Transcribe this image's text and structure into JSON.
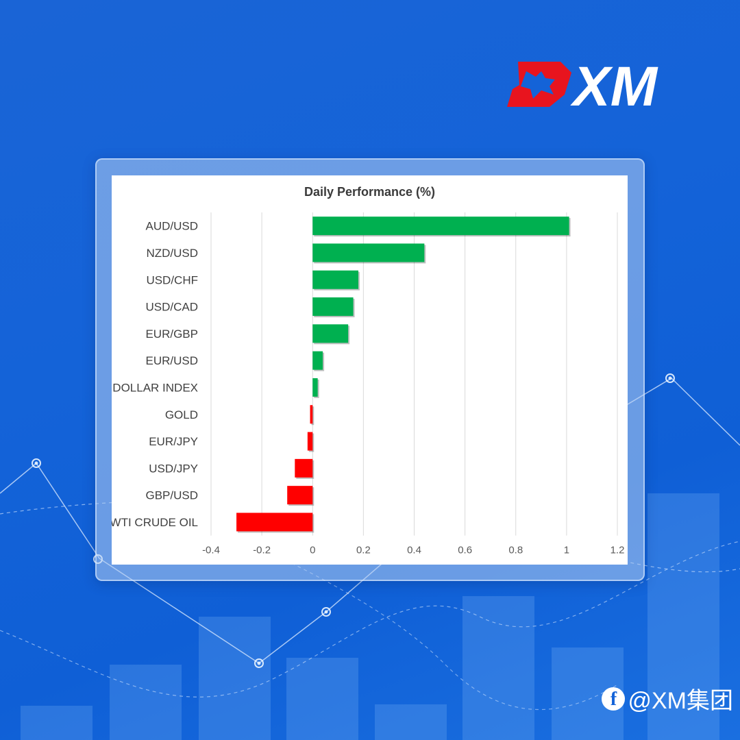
{
  "brand": {
    "logo_text": "XM",
    "logo_red": "#e8141e",
    "logo_white": "#ffffff"
  },
  "social": {
    "handle": "@XM集团",
    "icon": "facebook-icon"
  },
  "chart_data": {
    "type": "bar",
    "orientation": "horizontal",
    "title": "Daily Performance (%)",
    "categories": [
      "AUD/USD",
      "NZD/USD",
      "USD/CHF",
      "USD/CAD",
      "EUR/GBP",
      "EUR/USD",
      "DOLLAR INDEX",
      "GOLD",
      "EUR/JPY",
      "USD/JPY",
      "GBP/USD",
      "WTI CRUDE OIL"
    ],
    "values": [
      1.01,
      0.44,
      0.18,
      0.16,
      0.14,
      0.04,
      0.02,
      -0.01,
      -0.02,
      -0.07,
      -0.1,
      -0.3
    ],
    "xlim": [
      -0.4,
      1.2
    ],
    "xticks": [
      "-0.4",
      "-0.2",
      "0",
      "0.2",
      "0.4",
      "0.6",
      "0.8",
      "1",
      "1.2"
    ],
    "grid": true,
    "colors": {
      "positive": "#00b050",
      "negative": "#ff0000"
    }
  }
}
